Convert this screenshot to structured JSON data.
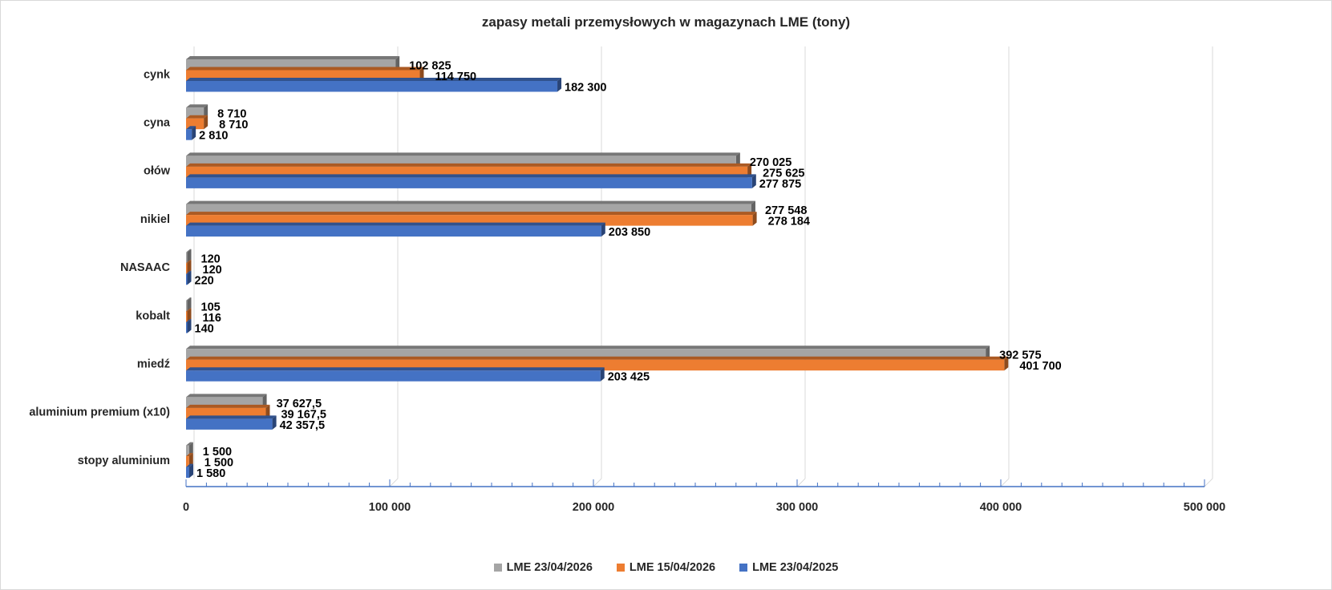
{
  "chart_data": {
    "type": "bar",
    "orientation": "horizontal",
    "style": "3d-clustered",
    "title": "zapasy metali przemysłowych w magazynach LME (tony)",
    "xlabel": "",
    "ylabel": "",
    "xlim": [
      0,
      500000
    ],
    "grid": true,
    "legend_position": "bottom",
    "x_ticks": [
      0,
      100000,
      200000,
      300000,
      400000,
      500000
    ],
    "x_tick_labels": [
      "0",
      "100 000",
      "200 000",
      "300 000",
      "400 000",
      "500 000"
    ],
    "categories": [
      "cynk",
      "cyna",
      "ołów",
      "nikiel",
      "NASAAC",
      "kobalt",
      "miedź",
      "aluminium premium (x10)",
      "stopy aluminium"
    ],
    "series": [
      {
        "name": "LME 23/04/2026",
        "color": "#a5a5a5",
        "values": [
          102825,
          8710,
          270025,
          277548,
          120,
          105,
          392575,
          37627.5,
          1500
        ],
        "labels": [
          "102 825",
          "8 710",
          "270 025",
          "277 548",
          "120",
          "105",
          "392 575",
          "37 627,5",
          "1 500"
        ]
      },
      {
        "name": "LME 15/04/2026",
        "color": "#ed7d31",
        "values": [
          114750,
          8710,
          275625,
          278184,
          120,
          116,
          401700,
          39167.5,
          1500
        ],
        "labels": [
          "114 750",
          "8 710",
          "275 625",
          "278 184",
          "120",
          "116",
          "401 700",
          "39 167,5",
          "1 500"
        ]
      },
      {
        "name": "LME 23/04/2025",
        "color": "#4472c4",
        "values": [
          182300,
          2810,
          277875,
          203850,
          220,
          140,
          203425,
          42357.5,
          1580
        ],
        "labels": [
          "182 300",
          "2 810",
          "277 875",
          "203 850",
          "220",
          "140",
          "203 425",
          "42 357,5",
          "1 580"
        ]
      }
    ]
  }
}
